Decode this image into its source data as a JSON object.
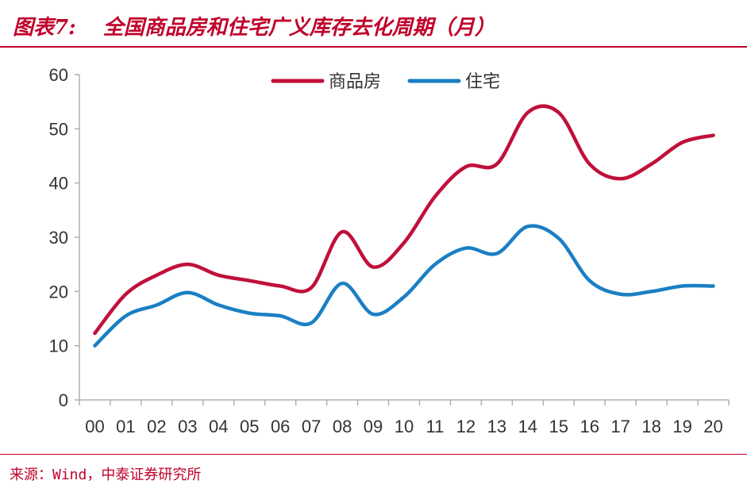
{
  "figure": {
    "label": "图表7:",
    "title": "全国商品房和住宅广义库存去化周期（月）"
  },
  "source": "来源：Wind，中泰证券研究所",
  "colors": {
    "accent": "#c0002a",
    "commercial": "#c0103a",
    "residential": "#1a7fc4",
    "axis": "#b0b0b0",
    "text": "#333333"
  },
  "chart_data": {
    "type": "line",
    "categories": [
      "00",
      "01",
      "02",
      "03",
      "04",
      "05",
      "06",
      "07",
      "08",
      "09",
      "10",
      "11",
      "12",
      "13",
      "14",
      "15",
      "16",
      "17",
      "18",
      "19",
      "20"
    ],
    "ylim": [
      0,
      60
    ],
    "yticks": [
      0,
      10,
      20,
      30,
      40,
      50,
      60
    ],
    "grid": false,
    "legend": "top-center",
    "series": [
      {
        "name": "商品房",
        "values": [
          12.3,
          19.5,
          23.0,
          25.0,
          23.0,
          22.0,
          21.0,
          20.7,
          31.0,
          24.5,
          29.0,
          37.5,
          43.0,
          43.5,
          53.0,
          53.0,
          43.5,
          40.8,
          43.5,
          47.5,
          48.8
        ]
      },
      {
        "name": "住宅",
        "values": [
          10.0,
          15.5,
          17.5,
          19.8,
          17.5,
          16.0,
          15.5,
          14.2,
          21.5,
          15.8,
          19.0,
          25.0,
          28.0,
          27.0,
          32.0,
          29.8,
          22.0,
          19.5,
          20.0,
          21.0,
          21.0
        ]
      }
    ]
  }
}
